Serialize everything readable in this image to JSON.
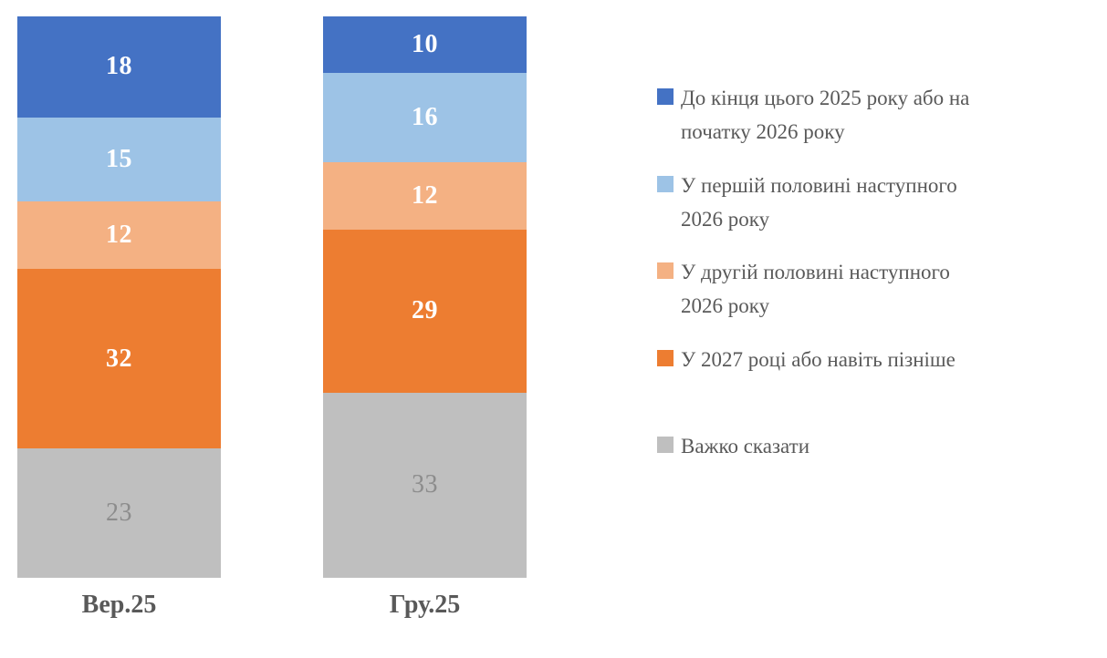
{
  "chart_data": {
    "type": "bar",
    "subtype": "stacked-column",
    "title": "",
    "categories": [
      "Вер.25",
      "Гру.25"
    ],
    "series": [
      {
        "name": "До кінця цього 2025 року або на початку 2026 року",
        "legend_lines": [
          "До кінця цього 2025 року або на",
          "початку 2026 року"
        ],
        "color": "#4472C4",
        "values": [
          18,
          10
        ],
        "value_label_color": "#FFFFFF",
        "value_label_bold": true
      },
      {
        "name": "У першій половині наступного 2026 року",
        "legend_lines": [
          "У першій половині наступного",
          "2026 року"
        ],
        "color": "#9DC3E6",
        "values": [
          15,
          16
        ],
        "value_label_color": "#FFFFFF",
        "value_label_bold": true
      },
      {
        "name": "У другій половині наступного 2026 року",
        "legend_lines": [
          "У другій половині наступного",
          "2026 року"
        ],
        "color": "#F4B183",
        "values": [
          12,
          12
        ],
        "value_label_color": "#FFFFFF",
        "value_label_bold": true
      },
      {
        "name": "У 2027 році або навіть пізніше",
        "legend_lines": [
          "У 2027 році або навіть пізніше"
        ],
        "color": "#ED7D31",
        "values": [
          32,
          29
        ],
        "value_label_color": "#FFFFFF",
        "value_label_bold": true
      },
      {
        "name": "Важко сказати",
        "legend_lines": [
          "Важко сказати"
        ],
        "color": "#BFBFBF",
        "values": [
          23,
          33
        ],
        "value_label_color": "#8C8C8C",
        "value_label_bold": false
      }
    ],
    "ylim": [
      0,
      100
    ],
    "grid": false,
    "axes_visible": false,
    "legend_position": "right",
    "axis_label_color": "#595959",
    "background": "#FFFFFF"
  }
}
